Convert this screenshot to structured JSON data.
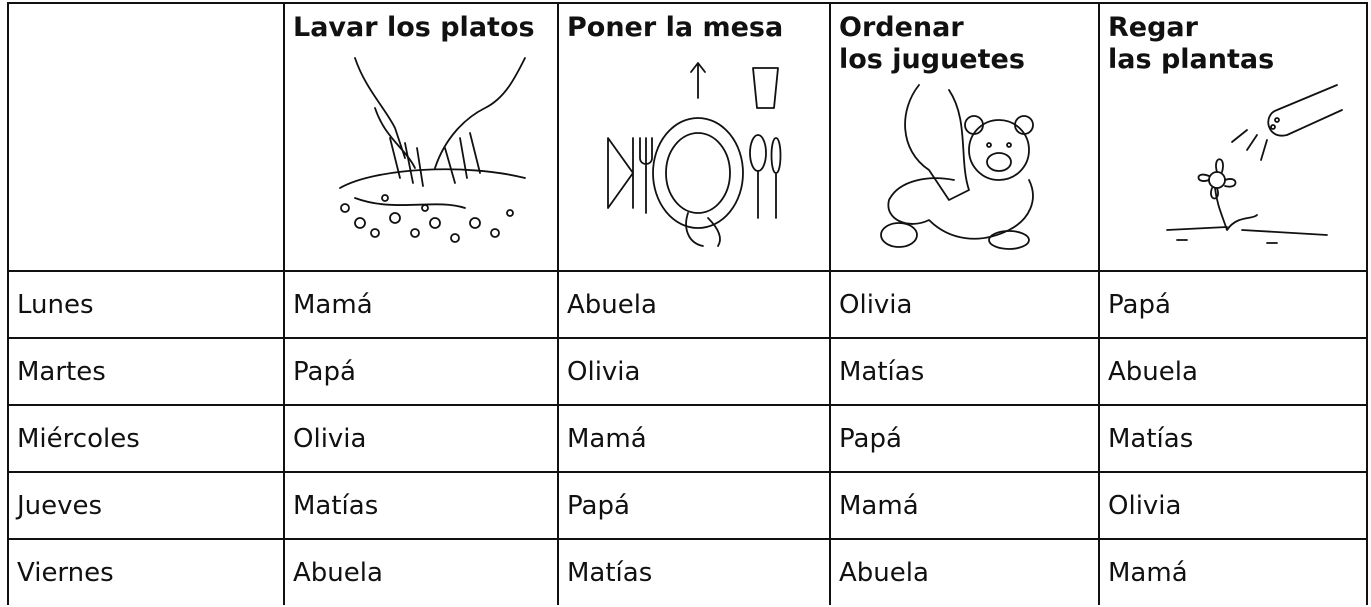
{
  "table": {
    "columns": [
      "Lavar los platos",
      "Poner la mesa",
      "Ordenar\nlos juguetes",
      "Regar\nlas plantas"
    ],
    "rows": [
      [
        "Lunes",
        "Mamá",
        "Abuela",
        "Olivia",
        "Papá"
      ],
      [
        "Martes",
        "Papá",
        "Olivia",
        "Matías",
        "Abuela"
      ],
      [
        "Miércoles",
        "Olivia",
        "Mamá",
        "Papá",
        "Matías"
      ],
      [
        "Jueves",
        "Matías",
        "Papá",
        "Mamá",
        "Olivia"
      ],
      [
        "Viernes",
        "Abuela",
        "Matías",
        "Abuela",
        "Mamá"
      ]
    ]
  }
}
